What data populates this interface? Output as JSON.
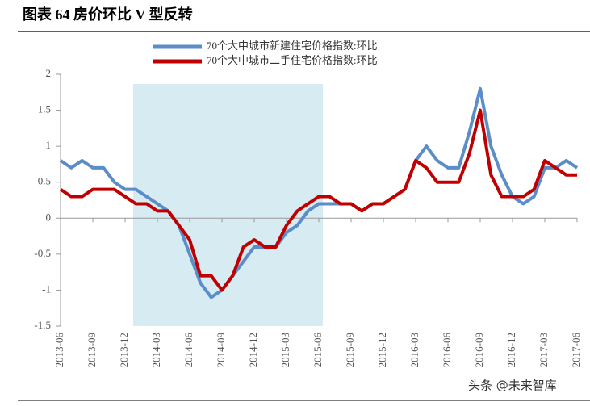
{
  "chart_data": {
    "type": "line",
    "title": "图表 64 房价环比 V 型反转",
    "categories": [
      "2013-06",
      null,
      null,
      "2013-09",
      null,
      null,
      "2013-12",
      null,
      null,
      "2014-03",
      null,
      null,
      "2014-06",
      null,
      null,
      "2014-09",
      null,
      null,
      "2014-12",
      null,
      null,
      "2015-03",
      null,
      null,
      "2015-06",
      null,
      null,
      "2015-09",
      null,
      null,
      "2015-12",
      null,
      null,
      "2016-03",
      null,
      null,
      "2016-06",
      null,
      null,
      "2016-09",
      null,
      null,
      "2016-12",
      null,
      null,
      "2017-03",
      null,
      null,
      "2017-06"
    ],
    "series": [
      {
        "name": "70个大中城市新建住宅价格指数:环比",
        "color": "#5b8ec9",
        "values": [
          0.8,
          0.7,
          0.8,
          0.7,
          0.7,
          0.5,
          0.4,
          0.4,
          0.3,
          0.2,
          0.1,
          -0.1,
          -0.5,
          -0.9,
          -1.1,
          -1.0,
          -0.8,
          -0.6,
          -0.4,
          -0.4,
          -0.4,
          -0.2,
          -0.1,
          0.1,
          0.2,
          0.2,
          0.2,
          0.2,
          0.1,
          0.2,
          0.2,
          0.3,
          0.4,
          0.8,
          1.0,
          0.8,
          0.7,
          0.7,
          1.2,
          1.8,
          1.0,
          0.6,
          0.3,
          0.2,
          0.3,
          0.7,
          0.7,
          0.8,
          0.7
        ]
      },
      {
        "name": "70个大中城市二手住宅价格指数:环比",
        "color": "#c00000",
        "values": [
          0.4,
          0.3,
          0.3,
          0.4,
          0.4,
          0.4,
          0.3,
          0.2,
          0.2,
          0.1,
          0.1,
          -0.1,
          -0.3,
          -0.8,
          -0.8,
          -1.0,
          -0.8,
          -0.4,
          -0.3,
          -0.4,
          -0.4,
          -0.1,
          0.1,
          0.2,
          0.3,
          0.3,
          0.2,
          0.2,
          0.1,
          0.2,
          0.2,
          0.3,
          0.4,
          0.8,
          0.7,
          0.5,
          0.5,
          0.5,
          0.9,
          1.5,
          0.6,
          0.3,
          0.3,
          0.3,
          0.4,
          0.8,
          0.7,
          0.6,
          0.6
        ]
      }
    ],
    "ylim": [
      -1.5,
      2
    ],
    "yticks": [
      2,
      1.5,
      1,
      0.5,
      0,
      -0.5,
      -1,
      -1.5
    ],
    "grid": false
  },
  "footer": {
    "watermark": "头条 @未来智库"
  }
}
